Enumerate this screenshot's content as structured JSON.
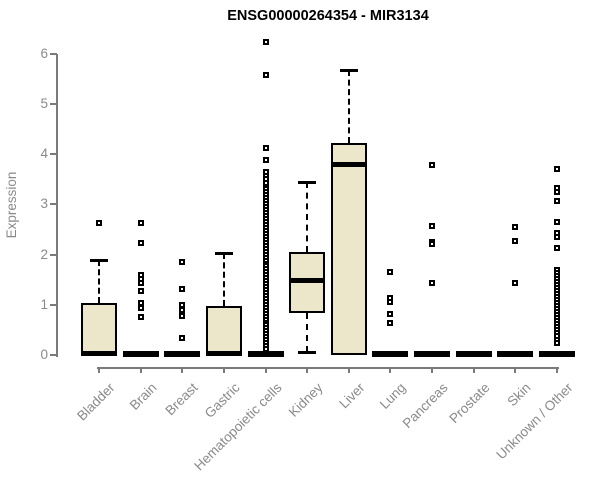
{
  "page": {
    "background": "#ffffff"
  },
  "chart_data": {
    "type": "boxplot",
    "title": "ENSG00000264354 - MIR3134",
    "ylabel": "Expression",
    "xlabel": "",
    "ylim": [
      0,
      6.4
    ],
    "yticks": [
      0,
      1,
      2,
      3,
      4,
      5,
      6
    ],
    "grid": false,
    "legend": "none",
    "box_fill_color": "#ece7ca",
    "mark_color": "#000000",
    "axis_color": "#7a7a7a",
    "label_color": "#8a8a8a",
    "title_color": "#000000",
    "categories": [
      "Bladder",
      "Brain",
      "Breast",
      "Gastric",
      "Hematopoietic cells",
      "Kidney",
      "Liver",
      "Lung",
      "Pancreas",
      "Prostate",
      "Skin",
      "Unknown / Other"
    ],
    "series": [
      {
        "category": "Bladder",
        "q1": 0,
        "median": 0.02,
        "q3": 1.03,
        "whisker_low": 0,
        "whisker_high": 1.89,
        "outliers": [
          2.63
        ]
      },
      {
        "category": "Brain",
        "q1": 0,
        "median": 0,
        "q3": 0,
        "whisker_low": 0,
        "whisker_high": 0,
        "outliers": [
          2.64,
          2.24,
          1.59,
          1.52,
          1.43,
          1.27,
          1.04,
          0.94,
          0.76
        ]
      },
      {
        "category": "Breast",
        "q1": 0,
        "median": 0,
        "q3": 0,
        "whisker_low": 0,
        "whisker_high": 0,
        "outliers": [
          1.86,
          1.31,
          1.0,
          0.9,
          0.78,
          0.34
        ]
      },
      {
        "category": "Gastric",
        "q1": 0,
        "median": 0.02,
        "q3": 0.97,
        "whisker_low": 0,
        "whisker_high": 2.04,
        "outliers": []
      },
      {
        "category": "Hematopoietic cells",
        "q1": 0,
        "median": 0,
        "q3": 0,
        "whisker_low": 0,
        "whisker_high": 0,
        "outliers": [
          6.23,
          5.59,
          4.12,
          3.88,
          3.65,
          3.57,
          3.5,
          3.42,
          3.35,
          3.3,
          3.24,
          3.18,
          3.12,
          3.06,
          3.0,
          2.95,
          2.89,
          2.83,
          2.77,
          2.71,
          2.65,
          2.59,
          2.53,
          2.47,
          2.41,
          2.36,
          2.3,
          2.24,
          2.18,
          2.12,
          2.06,
          2.0,
          1.94,
          1.88,
          1.82,
          1.77,
          1.71,
          1.65,
          1.59,
          1.53,
          1.47,
          1.41,
          1.35,
          1.29,
          1.23,
          1.18,
          1.12,
          1.06,
          1.0,
          0.94,
          0.88,
          0.82,
          0.76,
          0.7,
          0.64,
          0.59,
          0.53,
          0.47,
          0.41,
          0.35,
          0.29,
          0.23,
          0.17,
          0.11
        ]
      },
      {
        "category": "Kidney",
        "q1": 0.84,
        "median": 1.49,
        "q3": 2.05,
        "whisker_low": 0.05,
        "whisker_high": 3.45,
        "outliers": []
      },
      {
        "category": "Liver",
        "q1": 0,
        "median": 3.8,
        "q3": 4.22,
        "whisker_low": 0,
        "whisker_high": 5.68,
        "outliers": []
      },
      {
        "category": "Lung",
        "q1": 0,
        "median": 0,
        "q3": 0,
        "whisker_low": 0,
        "whisker_high": 0,
        "outliers": [
          1.66,
          1.14,
          1.06,
          0.82,
          0.64
        ]
      },
      {
        "category": "Pancreas",
        "q1": 0,
        "median": 0,
        "q3": 0,
        "whisker_low": 0,
        "whisker_high": 0,
        "outliers": [
          3.79,
          2.57,
          2.25,
          2.21,
          1.44
        ]
      },
      {
        "category": "Prostate",
        "q1": 0,
        "median": 0,
        "q3": 0,
        "whisker_low": 0,
        "whisker_high": 0,
        "outliers": []
      },
      {
        "category": "Skin",
        "q1": 0,
        "median": 0,
        "q3": 0,
        "whisker_low": 0,
        "whisker_high": 0,
        "outliers": [
          2.55,
          2.27,
          1.43
        ]
      },
      {
        "category": "Unknown / Other",
        "q1": 0,
        "median": 0,
        "q3": 0,
        "whisker_low": 0,
        "whisker_high": 0,
        "outliers": [
          3.7,
          3.32,
          3.25,
          3.07,
          2.66,
          2.43,
          2.35,
          2.13,
          1.69,
          1.63,
          1.57,
          1.51,
          1.45,
          1.39,
          1.33,
          1.27,
          1.21,
          1.15,
          1.09,
          1.03,
          0.97,
          0.91,
          0.85,
          0.79,
          0.73,
          0.67,
          0.61,
          0.55,
          0.49,
          0.43,
          0.37,
          0.3,
          0.24
        ]
      }
    ]
  }
}
